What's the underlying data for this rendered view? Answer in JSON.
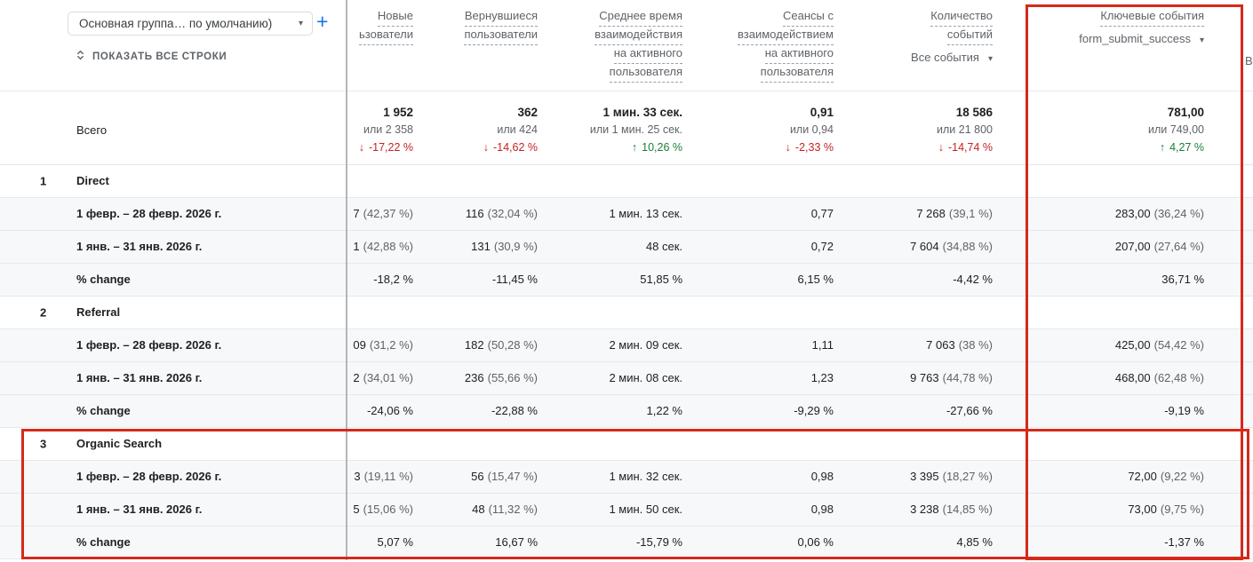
{
  "controls": {
    "dimension_selector": "Основная группа… по умолчанию)",
    "add_label": "+",
    "show_all_label": "ПОКАЗАТЬ ВСЕ СТРОКИ"
  },
  "glyphs": {
    "caret": "▾",
    "up": "↑",
    "down": "↓"
  },
  "colors": {
    "negative": "#c5221f",
    "positive": "#188038",
    "highlight_red": "#d5291a",
    "accent_blue": "#1a73e8"
  },
  "table": {
    "totals_label": "Всего",
    "clipped_next_column_letter": "В",
    "columns": [
      {
        "id": "new-users",
        "lines": [
          "Новые",
          "ьзователи"
        ]
      },
      {
        "id": "returning-users",
        "lines": [
          "Вернувшиеся",
          "пользователи"
        ]
      },
      {
        "id": "avg-engagement-time-per-active-user",
        "lines": [
          "Среднее время",
          "взаимодействия",
          "на активного",
          "пользователя"
        ]
      },
      {
        "id": "engaged-sessions-per-active-user",
        "lines": [
          "Сеансы с",
          "взаимодействием",
          "на активного",
          "пользователя"
        ]
      },
      {
        "id": "event-count",
        "lines": [
          "Количество",
          "событий"
        ],
        "selector": "Все события"
      },
      {
        "id": "key-events",
        "lines": [
          "Ключевые события"
        ],
        "selector": "form_submit_success",
        "highlighted": true
      }
    ],
    "totals": [
      {
        "main": "1 952",
        "alt": "или 2 358",
        "trend": "down",
        "change": "-17,22 %"
      },
      {
        "main": "362",
        "alt": "или 424",
        "trend": "down",
        "change": "-14,62 %"
      },
      {
        "main": "1 мин. 33 сек.",
        "alt": "или 1 мин. 25 сек.",
        "trend": "up",
        "change": "10,26 %"
      },
      {
        "main": "0,91",
        "alt": "или 0,94",
        "trend": "down",
        "change": "-2,33 %"
      },
      {
        "main": "18 586",
        "alt": "или 21 800",
        "trend": "down",
        "change": "-14,74 %"
      },
      {
        "main": "781,00",
        "alt": "или 749,00",
        "trend": "up",
        "change": "4,27 %"
      }
    ],
    "groups": [
      {
        "num": "1",
        "name": "Direct",
        "highlighted": false,
        "rows": [
          {
            "label": "1 февр. – 28 февр. 2026 г.",
            "cells": [
              {
                "v": "7",
                "p": "(42,37 %)"
              },
              {
                "v": "116",
                "p": "(32,04 %)"
              },
              {
                "v": "1 мин. 13 сек."
              },
              {
                "v": "0,77"
              },
              {
                "v": "7 268",
                "p": "(39,1 %)"
              },
              {
                "v": "283,00",
                "p": "(36,24 %)"
              }
            ]
          },
          {
            "label": "1 янв. – 31 янв. 2026 г.",
            "cells": [
              {
                "v": "1",
                "p": "(42,88 %)"
              },
              {
                "v": "131",
                "p": "(30,9 %)"
              },
              {
                "v": "48 сек."
              },
              {
                "v": "0,72"
              },
              {
                "v": "7 604",
                "p": "(34,88 %)"
              },
              {
                "v": "207,00",
                "p": "(27,64 %)"
              }
            ]
          },
          {
            "label": "% change",
            "cells": [
              {
                "v": "-18,2 %"
              },
              {
                "v": "-11,45 %"
              },
              {
                "v": "51,85 %"
              },
              {
                "v": "6,15 %"
              },
              {
                "v": "-4,42 %"
              },
              {
                "v": "36,71 %"
              }
            ]
          }
        ]
      },
      {
        "num": "2",
        "name": "Referral",
        "highlighted": false,
        "rows": [
          {
            "label": "1 февр. – 28 февр. 2026 г.",
            "cells": [
              {
                "v": "09",
                "p": "(31,2 %)"
              },
              {
                "v": "182",
                "p": "(50,28 %)"
              },
              {
                "v": "2 мин. 09 сек."
              },
              {
                "v": "1,11"
              },
              {
                "v": "7 063",
                "p": "(38 %)"
              },
              {
                "v": "425,00",
                "p": "(54,42 %)"
              }
            ]
          },
          {
            "label": "1 янв. – 31 янв. 2026 г.",
            "cells": [
              {
                "v": "2",
                "p": "(34,01 %)"
              },
              {
                "v": "236",
                "p": "(55,66 %)"
              },
              {
                "v": "2 мин. 08 сек."
              },
              {
                "v": "1,23"
              },
              {
                "v": "9 763",
                "p": "(44,78 %)"
              },
              {
                "v": "468,00",
                "p": "(62,48 %)"
              }
            ]
          },
          {
            "label": "% change",
            "cells": [
              {
                "v": "-24,06 %"
              },
              {
                "v": "-22,88 %"
              },
              {
                "v": "1,22 %"
              },
              {
                "v": "-9,29 %"
              },
              {
                "v": "-27,66 %"
              },
              {
                "v": "-9,19 %"
              }
            ]
          }
        ]
      },
      {
        "num": "3",
        "name": "Organic Search",
        "highlighted": true,
        "rows": [
          {
            "label": "1 февр. – 28 февр. 2026 г.",
            "cells": [
              {
                "v": "3",
                "p": "(19,11 %)"
              },
              {
                "v": "56",
                "p": "(15,47 %)"
              },
              {
                "v": "1 мин. 32 сек."
              },
              {
                "v": "0,98"
              },
              {
                "v": "3 395",
                "p": "(18,27 %)"
              },
              {
                "v": "72,00",
                "p": "(9,22 %)"
              }
            ]
          },
          {
            "label": "1 янв. – 31 янв. 2026 г.",
            "cells": [
              {
                "v": "5",
                "p": "(15,06 %)"
              },
              {
                "v": "48",
                "p": "(11,32 %)"
              },
              {
                "v": "1 мин. 50 сек."
              },
              {
                "v": "0,98"
              },
              {
                "v": "3 238",
                "p": "(14,85 %)"
              },
              {
                "v": "73,00",
                "p": "(9,75 %)"
              }
            ]
          },
          {
            "label": "% change",
            "cells": [
              {
                "v": "5,07 %"
              },
              {
                "v": "16,67 %"
              },
              {
                "v": "-15,79 %"
              },
              {
                "v": "0,06 %"
              },
              {
                "v": "4,85 %"
              },
              {
                "v": "-1,37 %"
              }
            ]
          }
        ]
      }
    ]
  }
}
